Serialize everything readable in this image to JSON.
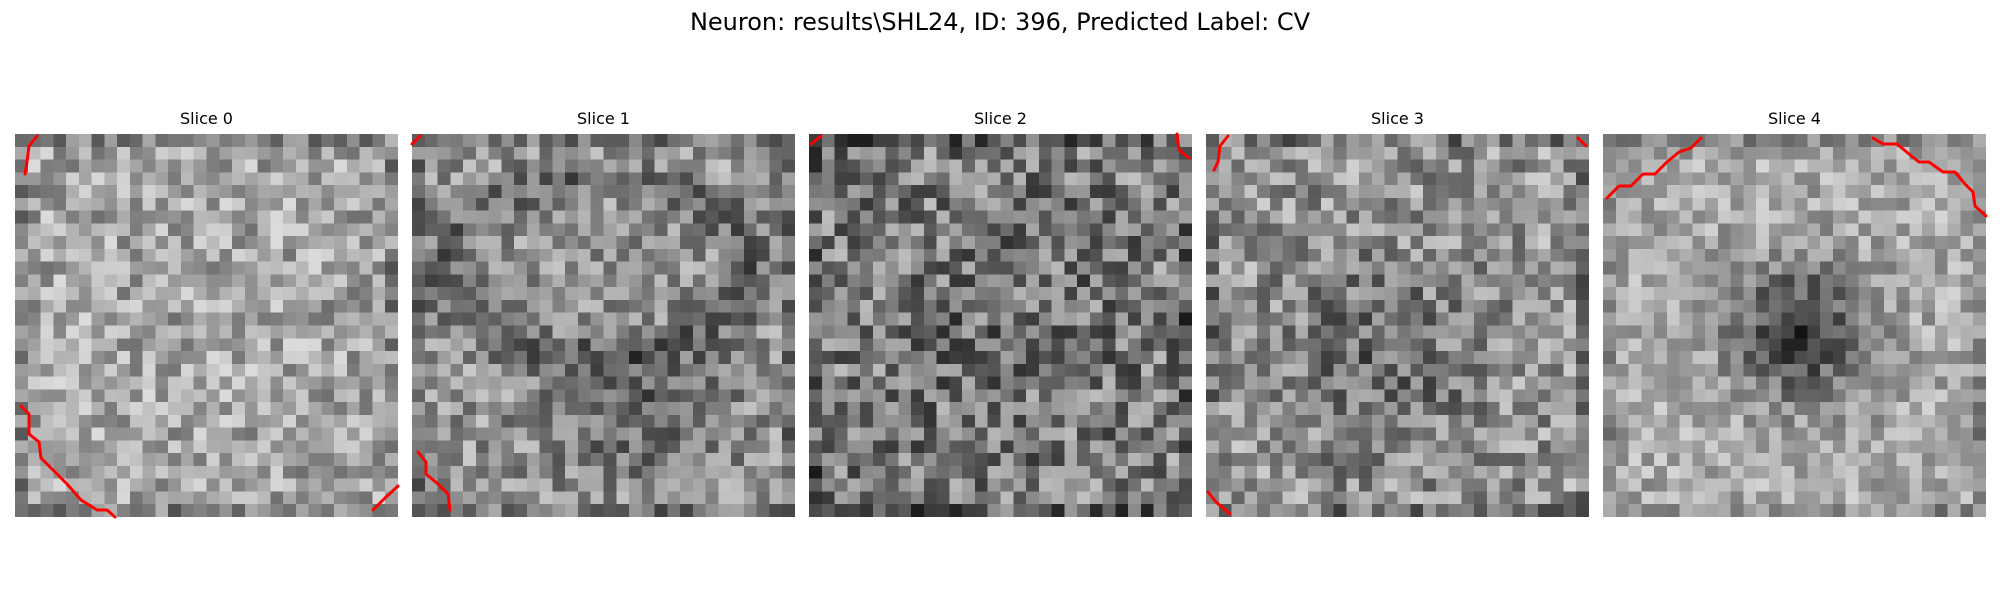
{
  "figure": {
    "title": "Neuron: results\\SHL24, ID: 396, Predicted Label: CV"
  },
  "slices": [
    {
      "title": "Slice 0",
      "dark_region": "none",
      "contour_color": "#ff0000",
      "contour_locations": [
        "top-left corner",
        "bottom-left corner",
        "bottom-right corner"
      ]
    },
    {
      "title": "Slice 1",
      "dark_region": "ring, bottom-center",
      "contour_color": "#ff0000",
      "contour_locations": [
        "top-left corner",
        "bottom-left corner"
      ]
    },
    {
      "title": "Slice 2",
      "dark_region": "diffuse, center",
      "contour_color": "#ff0000",
      "contour_locations": [
        "top-left corner",
        "top-right corner"
      ]
    },
    {
      "title": "Slice 3",
      "dark_region": "center",
      "contour_color": "#ff0000",
      "contour_locations": [
        "top-left corner",
        "top-right corner",
        "bottom-left corner"
      ]
    },
    {
      "title": "Slice 4",
      "dark_region": "center blob",
      "contour_color": "#ff0000",
      "contour_locations": [
        "top-left edge",
        "top-right edge"
      ]
    }
  ]
}
